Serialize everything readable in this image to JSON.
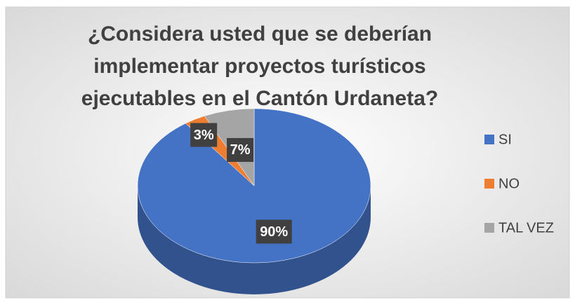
{
  "chart_data": {
    "type": "pie3d",
    "title": "¿Considera usted que se deberían implementar proyectos turísticos ejecutables en el Cantón Urdaneta?",
    "categories": [
      "SI",
      "NO",
      "TAL VEZ"
    ],
    "values": [
      90,
      3,
      7
    ],
    "value_labels": [
      "90%",
      "3%",
      "7%"
    ],
    "colors": [
      "#4472c4",
      "#ed7d31",
      "#a5a5a5"
    ],
    "legend": "right"
  }
}
